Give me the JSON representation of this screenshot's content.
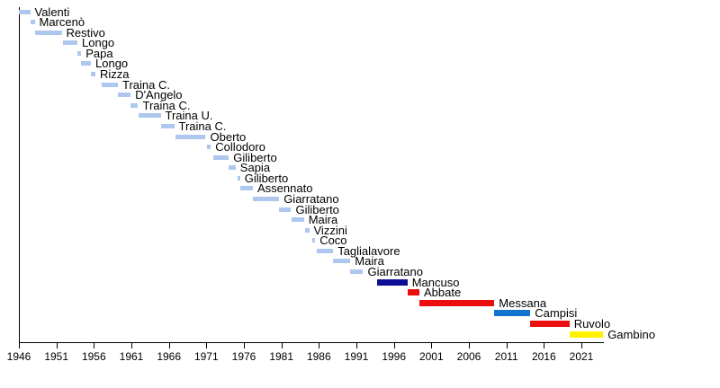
{
  "chart_data": {
    "type": "bar",
    "subtype": "timeline-gantt-mayors",
    "orientation": "horizontal",
    "background": "#FFFFFF",
    "xlabel": "",
    "ylabel": "",
    "x_axis": {
      "min": 1946,
      "max": 2024,
      "tick_step": 5,
      "ticks": [
        1946,
        1951,
        1956,
        1961,
        1966,
        1971,
        1976,
        1981,
        1986,
        1991,
        1996,
        2001,
        2006,
        2011,
        2016,
        2021
      ]
    },
    "colors": {
      "default": "#AEC7EE",
      "navy": "#0D0D96",
      "red": "#EB0E0E",
      "blue": "#1273CF",
      "yellow": "#FFF200",
      "axis": "#000000",
      "text": "#000000"
    },
    "rows": [
      {
        "label": "Valenti",
        "start": 1946.0,
        "end": 1947.5
      },
      {
        "label": "Marcenò",
        "start": 1947.5,
        "end": 1948.1
      },
      {
        "label": "Restivo",
        "start": 1948.1,
        "end": 1951.7
      },
      {
        "label": "Longo",
        "start": 1951.9,
        "end": 1953.8
      },
      {
        "label": "Papa",
        "start": 1953.8,
        "end": 1954.3
      },
      {
        "label": "Longo",
        "start": 1954.3,
        "end": 1955.6
      },
      {
        "label": "Rizza",
        "start": 1955.6,
        "end": 1956.2
      },
      {
        "label": "Traina C.",
        "start": 1957.0,
        "end": 1959.2
      },
      {
        "label": "D'Angelo",
        "start": 1959.2,
        "end": 1960.9
      },
      {
        "label": "Traina C.",
        "start": 1960.9,
        "end": 1961.9
      },
      {
        "label": "Traina U.",
        "start": 1961.9,
        "end": 1964.9
      },
      {
        "label": "Traina C.",
        "start": 1964.9,
        "end": 1966.7
      },
      {
        "label": "Oberto",
        "start": 1966.9,
        "end": 1970.9
      },
      {
        "label": "Collodoro",
        "start": 1971.1,
        "end": 1971.6
      },
      {
        "label": "Giliberto",
        "start": 1971.9,
        "end": 1974.0
      },
      {
        "label": "Sapia",
        "start": 1974.0,
        "end": 1974.9
      },
      {
        "label": "Giliberto",
        "start": 1975.1,
        "end": 1975.5
      },
      {
        "label": "Assennato",
        "start": 1975.5,
        "end": 1977.2
      },
      {
        "label": "Giarratano",
        "start": 1977.2,
        "end": 1980.7
      },
      {
        "label": "Giliberto",
        "start": 1980.7,
        "end": 1982.3
      },
      {
        "label": "Maira",
        "start": 1982.3,
        "end": 1984.0
      },
      {
        "label": "Vizzini",
        "start": 1984.1,
        "end": 1984.7
      },
      {
        "label": "Coco",
        "start": 1985.1,
        "end": 1985.5
      },
      {
        "label": "Taglialavore",
        "start": 1985.7,
        "end": 1987.9
      },
      {
        "label": "Maira",
        "start": 1987.9,
        "end": 1990.2
      },
      {
        "label": "Giarratano",
        "start": 1990.2,
        "end": 1991.9
      },
      {
        "label": "Mancuso",
        "start": 1993.7,
        "end": 1997.8,
        "color": "navy"
      },
      {
        "label": "Abbate",
        "start": 1997.8,
        "end": 1999.4,
        "color": "red"
      },
      {
        "label": "Messana",
        "start": 1999.4,
        "end": 2009.4,
        "color": "red"
      },
      {
        "label": "Campisi",
        "start": 2009.4,
        "end": 2014.2,
        "color": "blue"
      },
      {
        "label": "Ruvolo",
        "start": 2014.2,
        "end": 2019.4,
        "color": "red"
      },
      {
        "label": "Gambino",
        "start": 2019.4,
        "end": 2023.9,
        "color": "yellow"
      }
    ]
  }
}
